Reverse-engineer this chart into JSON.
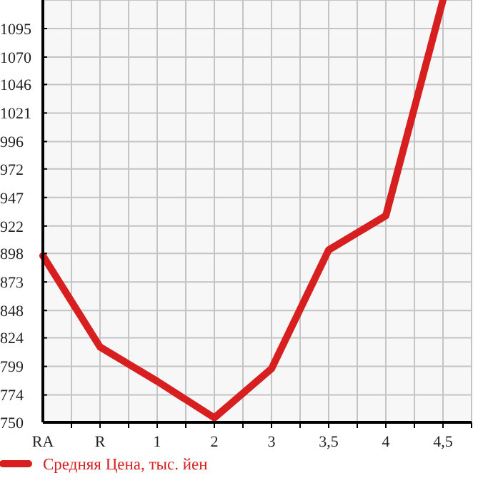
{
  "chart_data": {
    "type": "line",
    "categories": [
      "RA",
      "R",
      "1",
      "2",
      "3",
      "3,5",
      "4",
      "4,5"
    ],
    "series": [
      {
        "name": "Средняя Цена, тыс. йен",
        "color": "#d71f1f",
        "values": [
          896,
          816,
          786,
          754,
          797,
          901,
          931,
          1120
        ]
      }
    ],
    "ylim": [
      750,
      1120
    ],
    "yticks": [
      750,
      774,
      799,
      824,
      848,
      873,
      898,
      922,
      947,
      972,
      996,
      1021,
      1046,
      1070,
      1095
    ],
    "grid": true,
    "legend": "bottom",
    "marker": "none",
    "line_style": "solid"
  }
}
